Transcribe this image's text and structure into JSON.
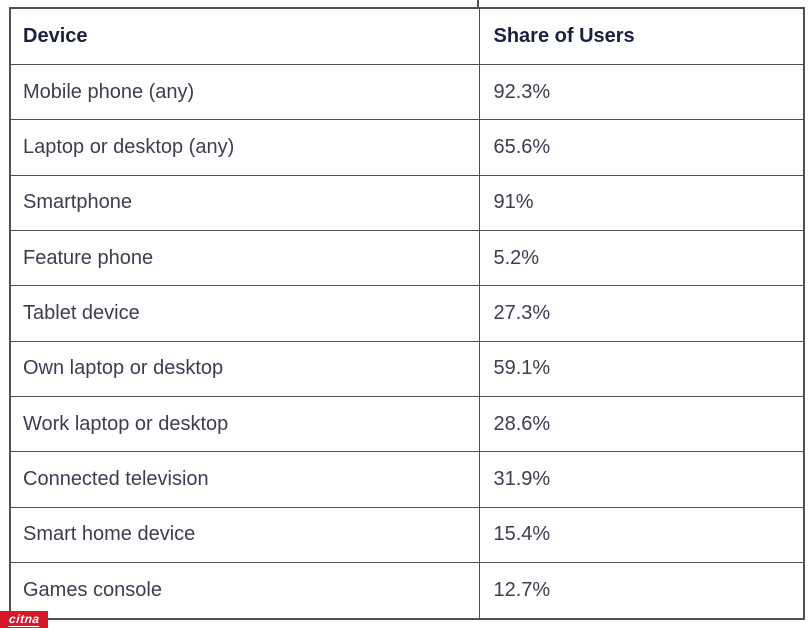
{
  "table": {
    "columns": [
      "Device",
      "Share of Users"
    ],
    "rows": [
      {
        "device": "Mobile phone (any)",
        "share": "92.3%"
      },
      {
        "device": "Laptop or desktop (any)",
        "share": "65.6%"
      },
      {
        "device": "Smartphone",
        "share": "91%"
      },
      {
        "device": "Feature phone",
        "share": "5.2%"
      },
      {
        "device": "Tablet device",
        "share": "27.3%"
      },
      {
        "device": "Own laptop or desktop",
        "share": "59.1%"
      },
      {
        "device": "Work laptop or desktop",
        "share": "28.6%"
      },
      {
        "device": "Connected television",
        "share": "31.9%"
      },
      {
        "device": "Smart home device",
        "share": "15.4%"
      },
      {
        "device": "Games console",
        "share": "12.7%"
      }
    ]
  },
  "chart_data": {
    "type": "table",
    "title": "",
    "columns": [
      "Device",
      "Share of Users"
    ],
    "categories": [
      "Mobile phone (any)",
      "Laptop or desktop (any)",
      "Smartphone",
      "Feature phone",
      "Tablet device",
      "Own laptop or desktop",
      "Work laptop or desktop",
      "Connected television",
      "Smart home device",
      "Games console"
    ],
    "values": [
      92.3,
      65.6,
      91,
      5.2,
      27.3,
      59.1,
      28.6,
      31.9,
      15.4,
      12.7
    ],
    "value_unit": "%"
  },
  "watermark": {
    "label": "citna"
  },
  "colors": {
    "border": "#4d5156",
    "header_text": "#1b2040",
    "body_text": "#3b3e4e",
    "watermark_red": "#d6182b",
    "background": "#ffffff"
  }
}
